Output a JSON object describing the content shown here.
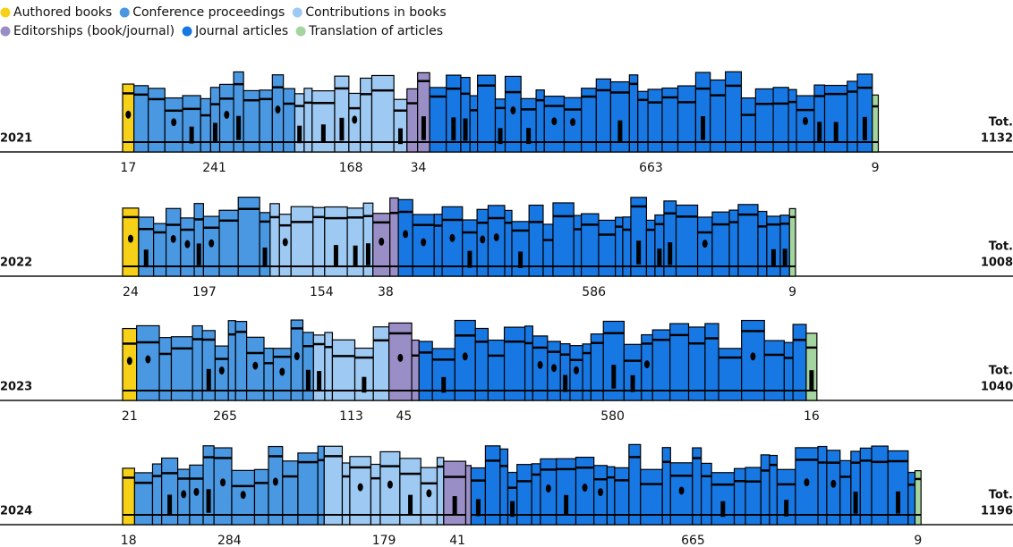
{
  "chart_data": {
    "type": "bookshelf",
    "categories": [
      "2021",
      "2022",
      "2023",
      "2024"
    ],
    "series": [
      {
        "name": "Authored books",
        "color": "#f7d117",
        "values": [
          17,
          24,
          21,
          18
        ]
      },
      {
        "name": "Conference proceedings",
        "color": "#4a98e2",
        "values": [
          241,
          197,
          265,
          284
        ]
      },
      {
        "name": "Contributions in books",
        "color": "#9dc9f2",
        "values": [
          168,
          154,
          113,
          179
        ]
      },
      {
        "name": "Editorships (book/journal)",
        "color": "#9a8ec6",
        "values": [
          34,
          38,
          45,
          41
        ]
      },
      {
        "name": "Journal articles",
        "color": "#1778e3",
        "values": [
          663,
          586,
          580,
          665
        ]
      },
      {
        "name": "Translation of articles",
        "color": "#a5d59f",
        "values": [
          9,
          9,
          16,
          9
        ]
      }
    ],
    "total_label": "Tot.",
    "totals": [
      1132,
      1008,
      1040,
      1196
    ]
  }
}
